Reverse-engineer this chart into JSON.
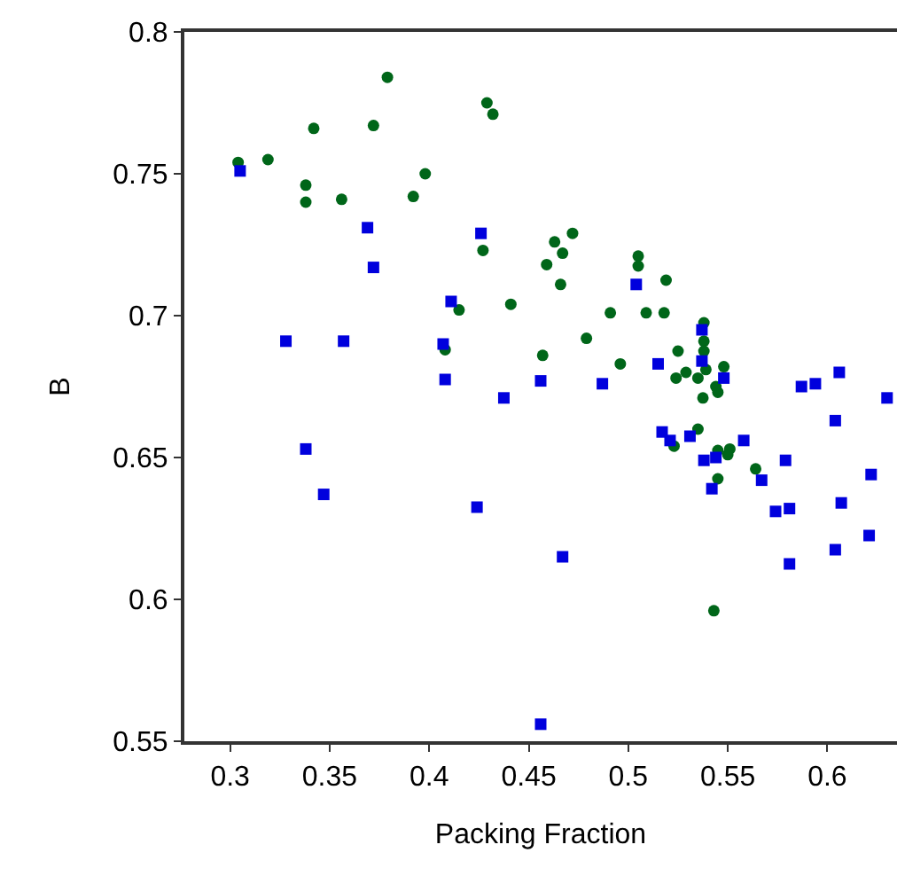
{
  "chart_data": {
    "type": "scatter",
    "xlabel": "Packing Fraction",
    "ylabel": "B",
    "xlim": [
      0.277,
      0.635
    ],
    "ylim": [
      0.55,
      0.8
    ],
    "xticks": [
      0.3,
      0.35,
      0.4,
      0.45,
      0.5,
      0.55,
      0.6
    ],
    "yticks": [
      0.55,
      0.6,
      0.65,
      0.7,
      0.75,
      0.8
    ],
    "grid": false,
    "series": [
      {
        "color": "#006619",
        "marker": "circle",
        "x": [
          0.304,
          0.319,
          0.338,
          0.342,
          0.356,
          0.338,
          0.372,
          0.379,
          0.392,
          0.398,
          0.429,
          0.432,
          0.427,
          0.441,
          0.415,
          0.408,
          0.472,
          0.463,
          0.467,
          0.459,
          0.466,
          0.505,
          0.505,
          0.519,
          0.491,
          0.509,
          0.518,
          0.479,
          0.457,
          0.496,
          0.538,
          0.538,
          0.538,
          0.525,
          0.539,
          0.548,
          0.529,
          0.524,
          0.535,
          0.544,
          0.5375,
          0.545,
          0.535,
          0.523,
          0.545,
          0.551,
          0.55,
          0.564,
          0.545,
          0.543
        ],
        "values": [
          0.754,
          0.755,
          0.746,
          0.766,
          0.741,
          0.74,
          0.767,
          0.784,
          0.742,
          0.75,
          0.775,
          0.771,
          0.723,
          0.704,
          0.702,
          0.688,
          0.729,
          0.726,
          0.722,
          0.718,
          0.711,
          0.721,
          0.7175,
          0.7125,
          0.701,
          0.701,
          0.701,
          0.692,
          0.686,
          0.683,
          0.6975,
          0.691,
          0.6875,
          0.6875,
          0.681,
          0.682,
          0.68,
          0.678,
          0.678,
          0.675,
          0.671,
          0.673,
          0.66,
          0.654,
          0.6525,
          0.653,
          0.651,
          0.646,
          0.6425,
          0.596
        ]
      },
      {
        "color": "#0000dd",
        "marker": "square",
        "x": [
          0.305,
          0.369,
          0.372,
          0.426,
          0.411,
          0.328,
          0.357,
          0.407,
          0.408,
          0.504,
          0.537,
          0.537,
          0.515,
          0.548,
          0.456,
          0.487,
          0.606,
          0.587,
          0.594,
          0.63,
          0.604,
          0.517,
          0.521,
          0.531,
          0.558,
          0.538,
          0.544,
          0.579,
          0.622,
          0.567,
          0.542,
          0.607,
          0.574,
          0.581,
          0.621,
          0.604,
          0.581,
          0.467,
          0.456,
          0.4375,
          0.338,
          0.347,
          0.424
        ],
        "values": [
          0.751,
          0.731,
          0.717,
          0.729,
          0.705,
          0.691,
          0.691,
          0.69,
          0.6775,
          0.711,
          0.695,
          0.684,
          0.683,
          0.678,
          0.677,
          0.676,
          0.68,
          0.675,
          0.676,
          0.671,
          0.663,
          0.659,
          0.656,
          0.6575,
          0.656,
          0.649,
          0.65,
          0.649,
          0.644,
          0.642,
          0.639,
          0.634,
          0.631,
          0.632,
          0.6225,
          0.6175,
          0.6125,
          0.615,
          0.556,
          0.671,
          0.653,
          0.637,
          0.6325
        ]
      }
    ]
  }
}
